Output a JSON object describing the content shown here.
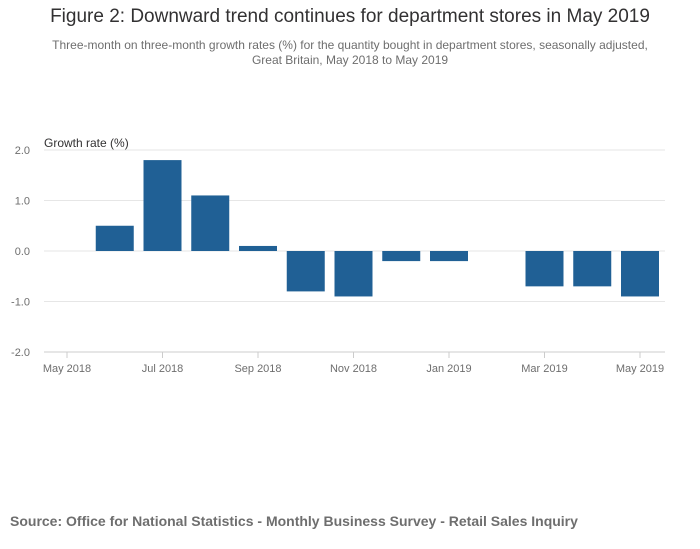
{
  "title": "Figure 2: Downward trend continues for department stores in May 2019",
  "subtitle_line1": "Three-month on three-month growth rates (%) for the quantity bought in department stores, seasonally adjusted,",
  "subtitle_line2": "Great Britain, May 2018 to May 2019",
  "source": "Source: Office for National Statistics - Monthly Business Survey - Retail Sales Inquiry",
  "colors": {
    "bar": "#206095",
    "grid": "#e6e6e6",
    "axis": "#cccccc"
  },
  "chart_data": {
    "type": "bar",
    "title": "Figure 2: Downward trend continues for department stores in May 2019",
    "ylabel": "Growth rate (%)",
    "xlabel": "",
    "ylim": [
      -2.0,
      2.0
    ],
    "yticks": [
      2.0,
      1.0,
      0.0,
      -1.0,
      -2.0
    ],
    "ytick_labels": [
      "2.0",
      "1.0",
      "0.0",
      "-1.0",
      "-2.0"
    ],
    "grid": true,
    "categories": [
      "May 2018",
      "Jun 2018",
      "Jul 2018",
      "Aug 2018",
      "Sep 2018",
      "Oct 2018",
      "Nov 2018",
      "Dec 2018",
      "Jan 2019",
      "Feb 2019",
      "Mar 2019",
      "Apr 2019",
      "May 2019"
    ],
    "values": [
      0.0,
      0.5,
      1.8,
      1.1,
      0.1,
      -0.8,
      -0.9,
      -0.2,
      -0.2,
      0.0,
      -0.7,
      -0.7,
      -0.9
    ],
    "xtick_labels": [
      "May 2018",
      "",
      "Jul 2018",
      "",
      "Sep 2018",
      "",
      "Nov 2018",
      "",
      "Jan 2019",
      "",
      "Mar 2019",
      "",
      "May 2019"
    ]
  }
}
